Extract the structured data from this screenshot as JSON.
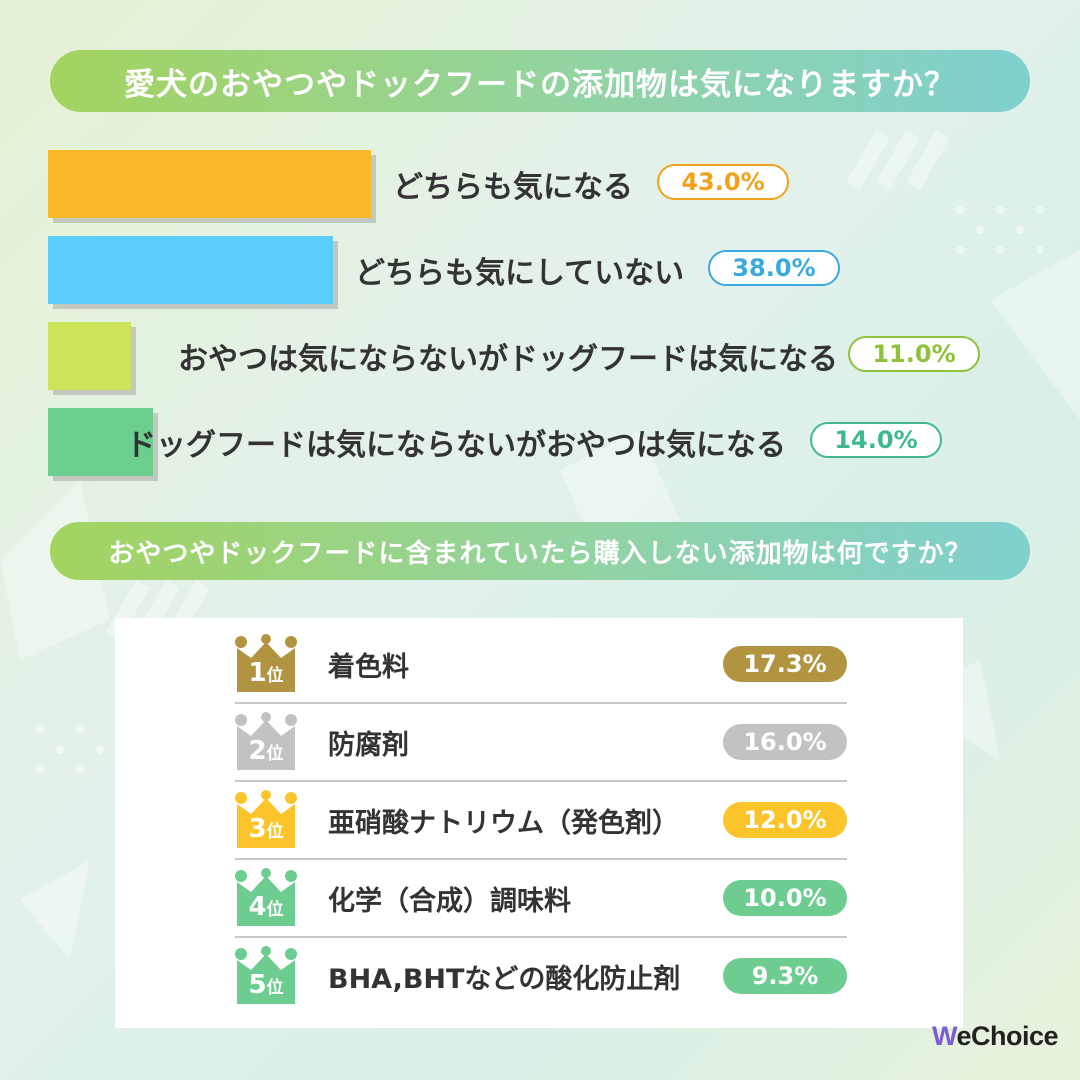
{
  "q1": {
    "title": "愛犬のおやつやドックフードの添加物は気になりますか？"
  },
  "q2": {
    "title": "おやつやドックフードに含まれていたら購入しない添加物は何ですか？"
  },
  "chart_data": [
    {
      "type": "bar",
      "title": "愛犬のおやつやドックフードの添加物は気になりますか？",
      "categories": [
        "どちらも気になる",
        "どちらも気にしていない",
        "おやつは気にならないがドッグフードは気になる",
        "ドッグフードは気にならないがおやつは気になる"
      ],
      "values": [
        43.0,
        38.0,
        11.0,
        14.0
      ],
      "value_labels": [
        "43.0%",
        "38.0%",
        "11.0%",
        "14.0%"
      ],
      "colors": [
        "#fbb829",
        "#5bcdfb",
        "#cde35a",
        "#6cce8f"
      ],
      "pill_colors": [
        "#f0a21c",
        "#3aa9e0",
        "#8fc23a",
        "#3fb891"
      ]
    },
    {
      "type": "table",
      "title": "おやつやドックフードに含まれていたら購入しない添加物は何ですか？",
      "rank_suffix": "位",
      "ranks": [
        "1",
        "2",
        "3",
        "4",
        "5"
      ],
      "categories": [
        "着色料",
        "防腐剤",
        "亜硝酸ナトリウム（発色剤）",
        "化学（合成）調味料",
        "BHA,BHTなどの酸化防止剤"
      ],
      "values": [
        17.3,
        16.0,
        12.0,
        10.0,
        9.3
      ],
      "value_labels": [
        "17.3%",
        "16.0%",
        "12.0%",
        "10.0%",
        "9.3%"
      ],
      "colors": [
        "#b29440",
        "#c2c2c2",
        "#fbc42b",
        "#6dcc8f",
        "#6dcc8f"
      ]
    }
  ],
  "logo": {
    "prefix": "W",
    "rest": "eChoice"
  }
}
